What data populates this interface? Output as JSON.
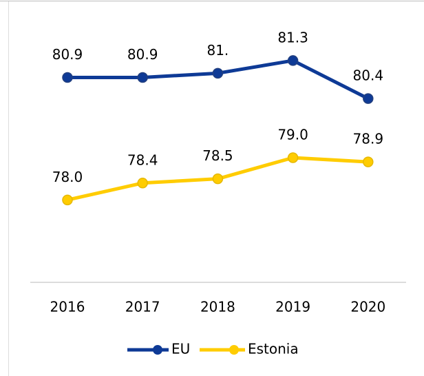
{
  "chart_data": {
    "type": "line",
    "categories": [
      "2016",
      "2017",
      "2018",
      "2019",
      "2020"
    ],
    "series": [
      {
        "name": "EU",
        "color": "#0e3a96",
        "values": [
          80.9,
          80.9,
          81.0,
          81.3,
          80.4
        ],
        "value_labels": [
          "80.9",
          "80.9",
          "81.",
          "81.3",
          "80.4"
        ]
      },
      {
        "name": "Estonia",
        "color": "#ffcc00",
        "values": [
          78.0,
          78.4,
          78.5,
          79.0,
          78.9
        ],
        "value_labels": [
          "78.0",
          "78.4",
          "78.5",
          "79.0",
          "78.9"
        ]
      }
    ],
    "ylim": [
      76,
      82
    ],
    "legend": "bottom"
  }
}
